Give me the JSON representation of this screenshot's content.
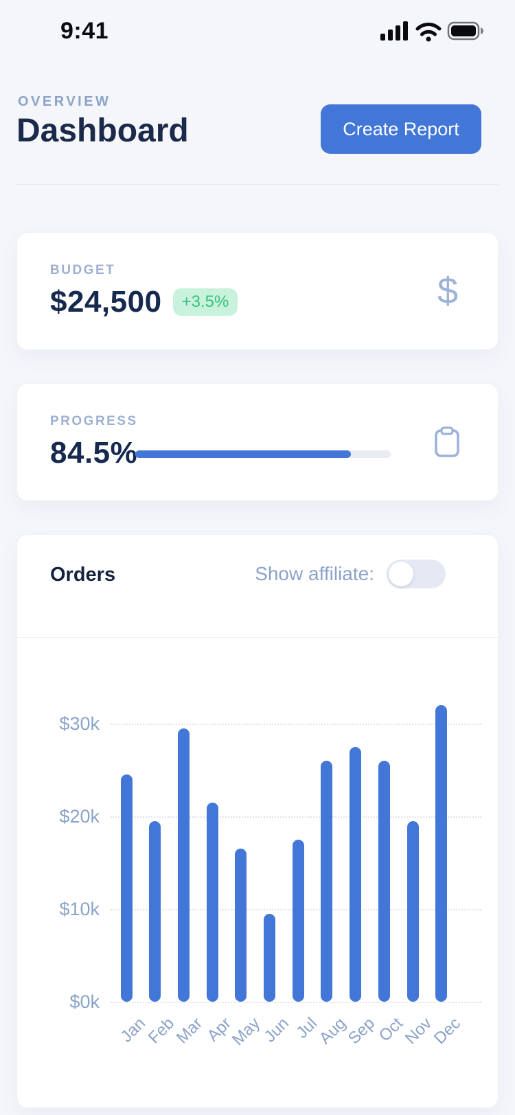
{
  "status_bar": {
    "time": "9:41",
    "icons": [
      "signal-icon",
      "wifi-icon",
      "battery-icon"
    ]
  },
  "header": {
    "eyebrow": "OVERVIEW",
    "title": "Dashboard",
    "create_report_label": "Create Report"
  },
  "budget_card": {
    "label": "BUDGET",
    "value": "$24,500",
    "delta": "+3.5%",
    "icon": "dollar-icon"
  },
  "progress_card": {
    "label": "PROGRESS",
    "value": "84.5%",
    "percent": 84.5,
    "icon": "clipboard-icon"
  },
  "orders_card": {
    "title": "Orders",
    "toggle_label": "Show affiliate:",
    "toggle_state": "off"
  },
  "chart_data": {
    "type": "bar",
    "title": "Orders",
    "categories": [
      "Jan",
      "Feb",
      "Mar",
      "Apr",
      "May",
      "Jun",
      "Jul",
      "Aug",
      "Sep",
      "Oct",
      "Nov",
      "Dec"
    ],
    "values": [
      24.5,
      19.5,
      29.5,
      21.5,
      16.5,
      9.5,
      17.5,
      26,
      27.5,
      26,
      19.5,
      32
    ],
    "values_unit": "thousand USD",
    "xlabel": "",
    "ylabel": "",
    "yticks": [
      "$0k",
      "$10k",
      "$20k",
      "$30k"
    ],
    "ylim": [
      0,
      33
    ],
    "grid": "horizontal-dotted",
    "legend": "none",
    "bar_color": "#4277d8"
  },
  "colors": {
    "accent": "#4277d8",
    "text_dark": "#1b2a4b",
    "text_muted": "#8ba3c9",
    "icon_muted": "#9cb2d8",
    "green_text": "#36c17e",
    "green_bg": "#c9f2dd",
    "page_bg": "#f4f6fa",
    "card_bg": "#ffffff",
    "progress_track": "#e9edf3",
    "toggle_track": "#e4e9f4",
    "grid": "#dfe3ec"
  }
}
